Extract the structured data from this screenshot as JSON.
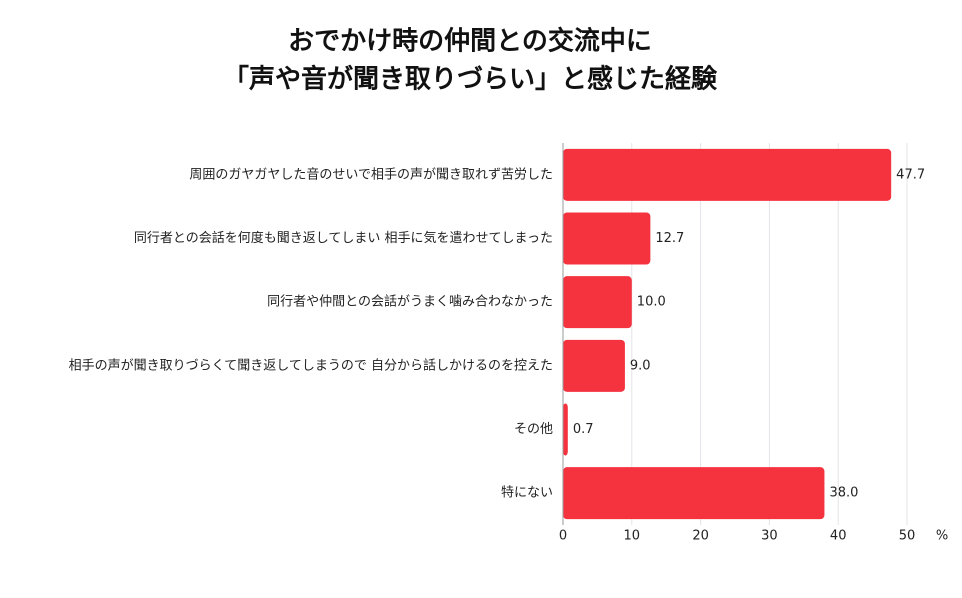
{
  "chart_data": {
    "type": "bar",
    "orientation": "horizontal",
    "title": [
      "おでかけ時の仲間との交流中に",
      "「声や音が聞き取りづらい」と感じた経験"
    ],
    "categories": [
      "周囲のガヤガヤした音のせいで相手の声が聞き取れず苦労した",
      "同行者との会話を何度も聞き返してしまい 相手に気を遣わせてしまった",
      "同行者や仲間との会話がうまく噛み合わなかった",
      "相手の声が聞き取りづらくて聞き返してしまうので 自分から話しかけるのを控えた",
      "その他",
      "特にない"
    ],
    "values": [
      47.7,
      12.7,
      10.0,
      9.0,
      0.7,
      38.0
    ],
    "value_labels": [
      "47.7",
      "12.7",
      "10.0",
      "9.0",
      "0.7",
      "38.0"
    ],
    "color": "#f5333f",
    "xlim": [
      0,
      50
    ],
    "xticks": [
      0,
      10,
      20,
      30,
      40,
      50
    ],
    "xlabel": "%",
    "grid": true
  }
}
